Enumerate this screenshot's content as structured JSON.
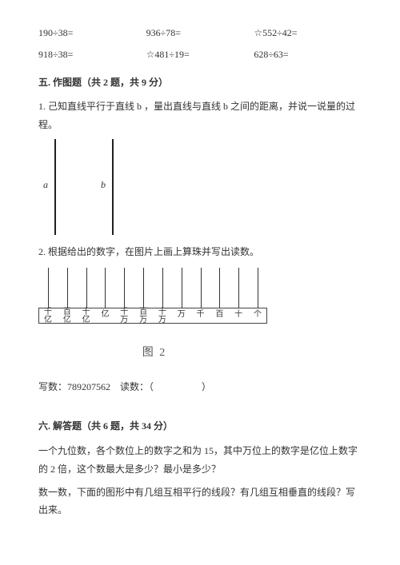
{
  "equations": {
    "row1": [
      "190÷38=",
      "936÷78=",
      "☆552÷42="
    ],
    "row2": [
      "918÷38=",
      "☆481÷19=",
      "628÷63="
    ]
  },
  "section5": {
    "title": "五. 作图题（共 2 题，共 9 分）",
    "q1": "1. 己知直线平行于直线 b ，量出直线与直线 b 之间的距离，并说一说量的过程。",
    "label_a": "a",
    "label_b": "b",
    "q2": "2. 根据给出的数字，在图片上画上算珠并写出读数。"
  },
  "abacus": {
    "labels": [
      "千亿",
      "百亿",
      "十亿",
      "亿",
      "千万",
      "百万",
      "十万",
      "万",
      "千",
      "百",
      "十",
      "个"
    ],
    "caption": "图 2"
  },
  "write_read": {
    "prefix": "写数：",
    "number": "789207562",
    "read_label": "读数：（",
    "close": "）"
  },
  "section6": {
    "title": "六. 解答题（共 6 题，共 34 分）",
    "q1": "一个九位数，各个数位上的数字之和为 15，其中万位上的数字是亿位上数字的 2 倍，这个数最大是多少？最小是多少？",
    "q2": "数一数，下面的图形中有几组互相平行的线段？有几组互相垂直的线段？写出来。"
  }
}
